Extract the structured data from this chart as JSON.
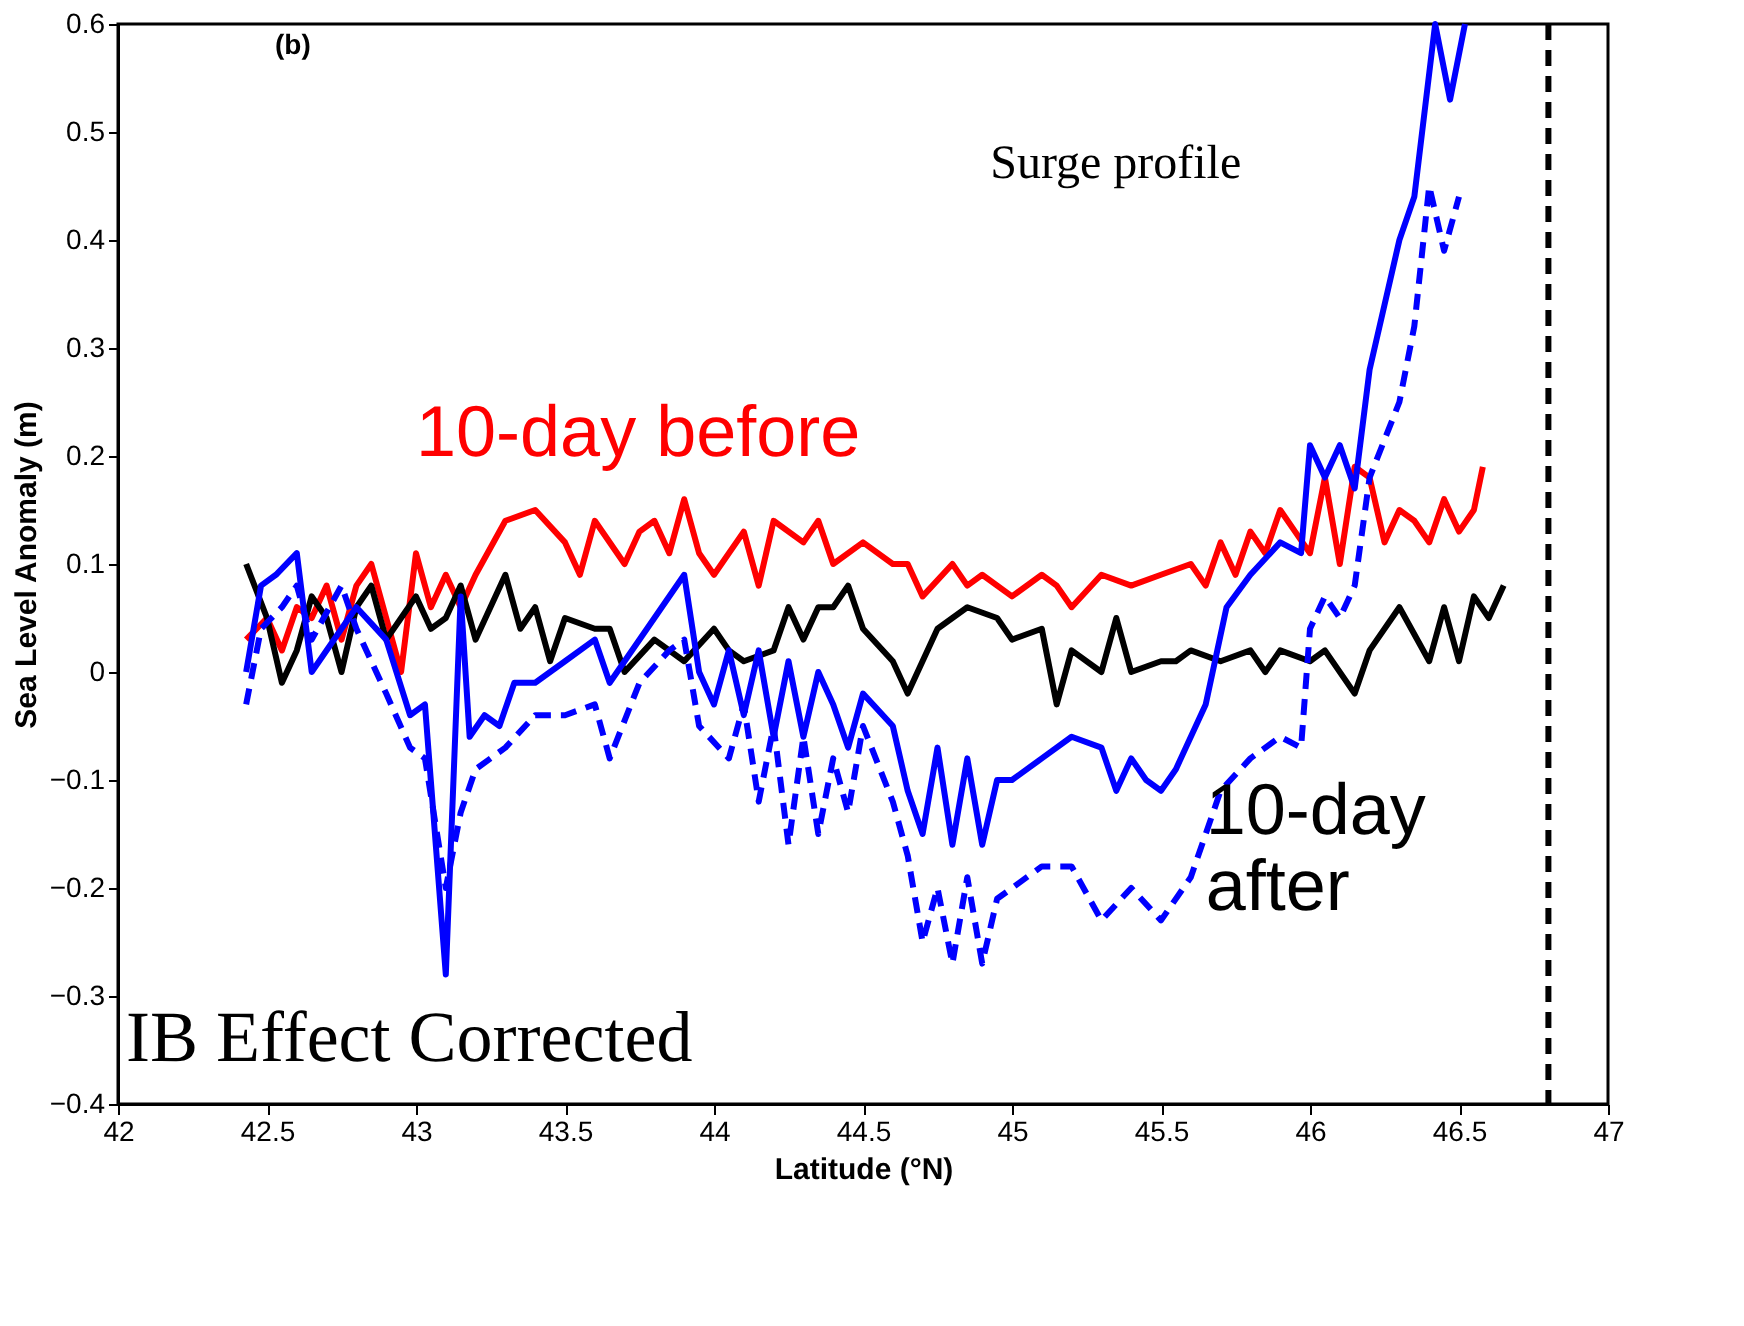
{
  "chart_data": {
    "type": "line",
    "xlabel": "Latitude (°N)",
    "ylabel": "Sea Level Anomaly (m)",
    "xlim": [
      42,
      47
    ],
    "xticks": [
      42,
      42.5,
      43,
      43.5,
      44,
      44.5,
      45,
      45.5,
      46,
      46.5,
      47
    ],
    "ylim": [
      -0.4,
      0.6
    ],
    "yticks": [
      -0.4,
      -0.3,
      -0.2,
      -0.1,
      0,
      0.1,
      0.2,
      0.3,
      0.4,
      0.5,
      0.6
    ],
    "grid": false,
    "marker": "none",
    "series": [
      {
        "name": "10-day before",
        "color": "#ff0000",
        "line_style": "solid",
        "x": [
          42.43,
          42.5,
          42.55,
          42.6,
          42.65,
          42.7,
          42.75,
          42.8,
          42.85,
          42.9,
          42.95,
          43.0,
          43.05,
          43.1,
          43.15,
          43.2,
          43.3,
          43.4,
          43.5,
          43.55,
          43.6,
          43.7,
          43.75,
          43.8,
          43.85,
          43.9,
          43.95,
          44.0,
          44.1,
          44.15,
          44.2,
          44.3,
          44.35,
          44.4,
          44.5,
          44.6,
          44.65,
          44.7,
          44.8,
          44.85,
          44.9,
          45.0,
          45.1,
          45.15,
          45.2,
          45.3,
          45.4,
          45.5,
          45.6,
          45.65,
          45.7,
          45.75,
          45.8,
          45.85,
          45.9,
          45.95,
          46.0,
          46.05,
          46.1,
          46.15,
          46.2,
          46.25,
          46.3,
          46.35,
          46.4,
          46.45,
          46.5,
          46.55,
          46.58
        ],
        "values": [
          0.03,
          0.05,
          0.02,
          0.06,
          0.05,
          0.08,
          0.03,
          0.08,
          0.1,
          0.05,
          0.0,
          0.11,
          0.06,
          0.09,
          0.06,
          0.09,
          0.14,
          0.15,
          0.12,
          0.09,
          0.14,
          0.1,
          0.13,
          0.14,
          0.11,
          0.16,
          0.11,
          0.09,
          0.13,
          0.08,
          0.14,
          0.12,
          0.14,
          0.1,
          0.12,
          0.1,
          0.1,
          0.07,
          0.1,
          0.08,
          0.09,
          0.07,
          0.09,
          0.08,
          0.06,
          0.09,
          0.08,
          0.09,
          0.1,
          0.08,
          0.12,
          0.09,
          0.13,
          0.11,
          0.15,
          0.13,
          0.11,
          0.18,
          0.1,
          0.19,
          0.18,
          0.12,
          0.15,
          0.14,
          0.12,
          0.16,
          0.13,
          0.15,
          0.19
        ]
      },
      {
        "name": "10-day after",
        "color": "#000000",
        "line_style": "solid",
        "x": [
          42.43,
          42.5,
          42.55,
          42.6,
          42.65,
          42.7,
          42.75,
          42.8,
          42.85,
          42.9,
          42.95,
          43.0,
          43.05,
          43.1,
          43.15,
          43.2,
          43.3,
          43.35,
          43.4,
          43.45,
          43.5,
          43.6,
          43.65,
          43.7,
          43.8,
          43.9,
          44.0,
          44.05,
          44.1,
          44.2,
          44.25,
          44.3,
          44.35,
          44.4,
          44.45,
          44.5,
          44.6,
          44.65,
          44.75,
          44.85,
          44.95,
          45.0,
          45.1,
          45.15,
          45.2,
          45.3,
          45.35,
          45.4,
          45.5,
          45.55,
          45.6,
          45.7,
          45.8,
          45.85,
          45.9,
          46.0,
          46.05,
          46.15,
          46.2,
          46.3,
          46.4,
          46.45,
          46.5,
          46.55,
          46.6,
          46.65
        ],
        "values": [
          0.1,
          0.05,
          -0.01,
          0.02,
          0.07,
          0.05,
          0.0,
          0.06,
          0.08,
          0.03,
          0.05,
          0.07,
          0.04,
          0.05,
          0.08,
          0.03,
          0.09,
          0.04,
          0.06,
          0.01,
          0.05,
          0.04,
          0.04,
          0.0,
          0.03,
          0.01,
          0.04,
          0.02,
          0.01,
          0.02,
          0.06,
          0.03,
          0.06,
          0.06,
          0.08,
          0.04,
          0.01,
          -0.02,
          0.04,
          0.06,
          0.05,
          0.03,
          0.04,
          -0.03,
          0.02,
          0.0,
          0.05,
          0.0,
          0.01,
          0.01,
          0.02,
          0.01,
          0.02,
          0.0,
          0.02,
          0.01,
          0.02,
          -0.02,
          0.02,
          0.06,
          0.01,
          0.06,
          0.01,
          0.07,
          0.05,
          0.08
        ]
      },
      {
        "color": "#0000ff",
        "line_style": "solid",
        "x": [
          42.43,
          42.48,
          42.53,
          42.6,
          42.65,
          42.75,
          42.8,
          42.9,
          42.98,
          43.03,
          43.1,
          43.15,
          43.18,
          43.23,
          43.28,
          43.33,
          43.4,
          43.5,
          43.6,
          43.65,
          43.8,
          43.9,
          43.95,
          44.0,
          44.05,
          44.1,
          44.15,
          44.2,
          44.25,
          44.3,
          44.35,
          44.4,
          44.45,
          44.5,
          44.6,
          44.65,
          44.7,
          44.75,
          44.8,
          44.85,
          44.9,
          44.95,
          45.0,
          45.1,
          45.2,
          45.3,
          45.35,
          45.4,
          45.45,
          45.5,
          45.55,
          45.65,
          45.72,
          45.8,
          45.9,
          45.97,
          46.0,
          46.05,
          46.1,
          46.15,
          46.2,
          46.25,
          46.3,
          46.35,
          46.42,
          46.47,
          46.52
        ],
        "values": [
          0.0,
          0.08,
          0.09,
          0.11,
          0.0,
          0.04,
          0.06,
          0.03,
          -0.04,
          -0.03,
          -0.28,
          0.07,
          -0.06,
          -0.04,
          -0.05,
          -0.01,
          -0.01,
          0.01,
          0.03,
          -0.01,
          0.05,
          0.09,
          0.0,
          -0.03,
          0.02,
          -0.04,
          0.02,
          -0.06,
          0.01,
          -0.06,
          0.0,
          -0.03,
          -0.07,
          -0.02,
          -0.05,
          -0.11,
          -0.15,
          -0.07,
          -0.16,
          -0.08,
          -0.16,
          -0.1,
          -0.1,
          -0.08,
          -0.06,
          -0.07,
          -0.11,
          -0.08,
          -0.1,
          -0.11,
          -0.09,
          -0.03,
          0.06,
          0.09,
          0.12,
          0.11,
          0.21,
          0.18,
          0.21,
          0.17,
          0.28,
          0.34,
          0.4,
          0.44,
          0.6,
          0.53,
          0.6
        ]
      },
      {
        "color": "#0000ff",
        "line_style": "dashed",
        "x": [
          42.43,
          42.48,
          42.55,
          42.6,
          42.65,
          42.75,
          42.8,
          42.9,
          42.98,
          43.03,
          43.1,
          43.15,
          43.2,
          43.3,
          43.4,
          43.5,
          43.6,
          43.65,
          43.75,
          43.85,
          43.9,
          43.95,
          44.05,
          44.1,
          44.15,
          44.2,
          44.25,
          44.3,
          44.35,
          44.4,
          44.45,
          44.5,
          44.6,
          44.65,
          44.7,
          44.75,
          44.8,
          44.85,
          44.9,
          44.95,
          45.0,
          45.1,
          45.2,
          45.3,
          45.4,
          45.5,
          45.6,
          45.7,
          45.8,
          45.9,
          45.97,
          46.0,
          46.05,
          46.1,
          46.15,
          46.2,
          46.3,
          46.35,
          46.4,
          46.45,
          46.5
        ],
        "values": [
          -0.03,
          0.04,
          0.06,
          0.08,
          0.03,
          0.08,
          0.04,
          -0.02,
          -0.07,
          -0.08,
          -0.2,
          -0.13,
          -0.09,
          -0.07,
          -0.04,
          -0.04,
          -0.03,
          -0.08,
          -0.01,
          0.02,
          0.03,
          -0.05,
          -0.08,
          -0.03,
          -0.12,
          -0.05,
          -0.16,
          -0.06,
          -0.15,
          -0.08,
          -0.13,
          -0.05,
          -0.12,
          -0.17,
          -0.25,
          -0.2,
          -0.27,
          -0.19,
          -0.27,
          -0.21,
          -0.2,
          -0.18,
          -0.18,
          -0.23,
          -0.2,
          -0.23,
          -0.19,
          -0.11,
          -0.08,
          -0.06,
          -0.07,
          0.04,
          0.07,
          0.05,
          0.08,
          0.18,
          0.25,
          0.32,
          0.45,
          0.39,
          0.44
        ]
      }
    ],
    "ref_lines": [
      {
        "axis": "x",
        "value": 46.8,
        "color": "#000000",
        "line_style": "dashed"
      }
    ],
    "annotations": [
      "(b)",
      "Surge profile",
      "IB Effect Corrected"
    ]
  }
}
